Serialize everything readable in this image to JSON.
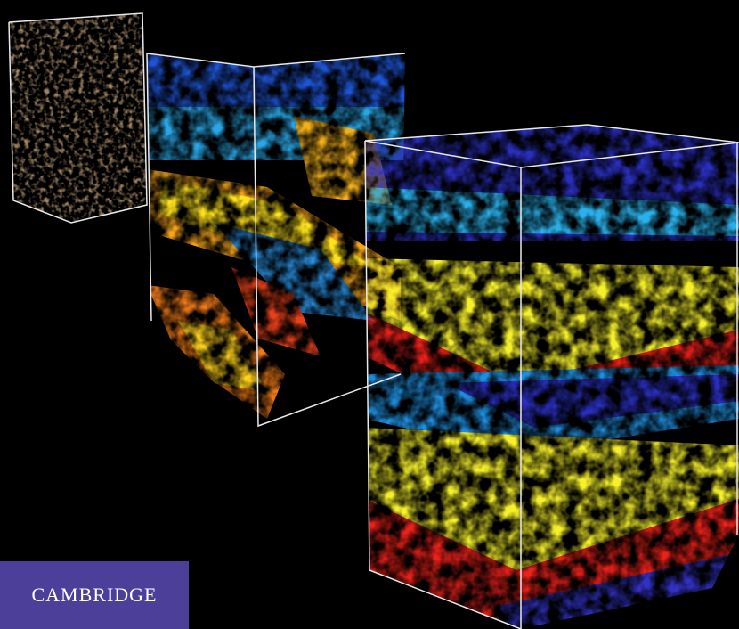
{
  "publisher": "CAMBRIDGE"
}
